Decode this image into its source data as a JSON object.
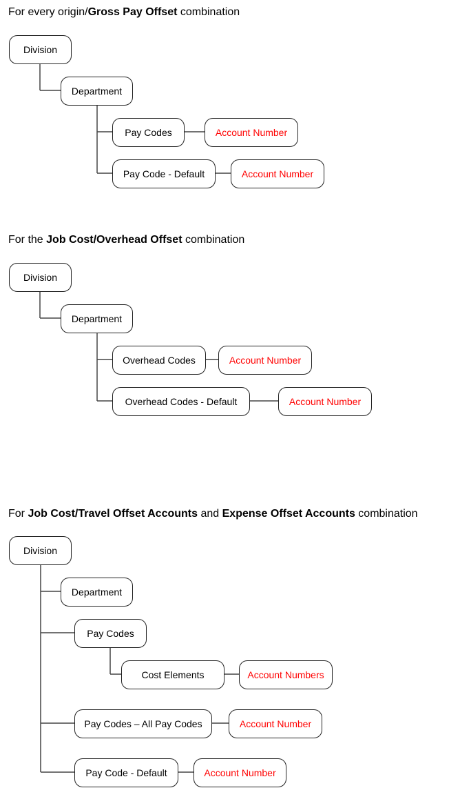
{
  "sections": [
    {
      "title_prefix": "For every origin/",
      "title_bold": "Gross Pay Offset",
      "title_suffix": " combination",
      "nodes": {
        "division": "Division",
        "department": "Department",
        "pay_codes": "Pay Codes",
        "pay_codes_account": "Account Number",
        "pay_code_default": "Pay Code - Default",
        "pay_code_default_account": "Account Number"
      }
    },
    {
      "title_prefix": "For the ",
      "title_bold": "Job Cost/Overhead Offset",
      "title_suffix": " combination",
      "nodes": {
        "division": "Division",
        "department": "Department",
        "overhead_codes": "Overhead Codes",
        "overhead_codes_account": "Account Number",
        "overhead_codes_default": "Overhead Codes - Default",
        "overhead_codes_default_account": "Account Number"
      }
    },
    {
      "title_prefix": "For ",
      "title_bold": "Job Cost/Travel Offset Accounts",
      "title_mid": " and ",
      "title_bold2": "Expense Offset Accounts",
      "title_suffix": " combination",
      "nodes": {
        "division": "Division",
        "department": "Department",
        "pay_codes": "Pay Codes",
        "cost_elements": "Cost Elements",
        "cost_elements_account": "Account Numbers",
        "pay_codes_all": "Pay Codes – All Pay Codes",
        "pay_codes_all_account": "Account Number",
        "pay_code_default": "Pay Code - Default",
        "pay_code_default_account": "Account Number"
      }
    }
  ],
  "colors": {
    "account_text": "#ff0000",
    "border": "#222222"
  }
}
